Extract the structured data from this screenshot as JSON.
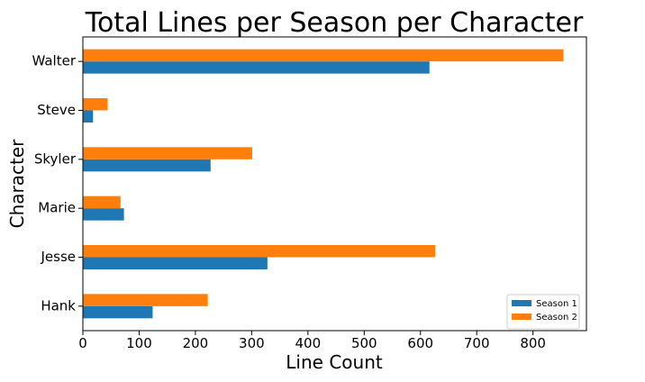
{
  "chart_data": {
    "type": "bar",
    "orientation": "horizontal",
    "title": "Total Lines per Season per Character",
    "xlabel": "Line Count",
    "ylabel": "Character",
    "categories": [
      "Hank",
      "Jesse",
      "Marie",
      "Skyler",
      "Steve",
      "Walter"
    ],
    "series": [
      {
        "name": "Season 1",
        "color": "#1f77b4",
        "values": [
          124,
          328,
          73,
          227,
          18,
          616
        ]
      },
      {
        "name": "Season 2",
        "color": "#ff7f0e",
        "values": [
          222,
          626,
          67,
          301,
          44,
          854
        ]
      }
    ],
    "xlim": [
      0,
      895
    ],
    "xticks": [
      0,
      100,
      200,
      300,
      400,
      500,
      600,
      700,
      800
    ],
    "grid": false,
    "legend_position": "bottom-right"
  }
}
